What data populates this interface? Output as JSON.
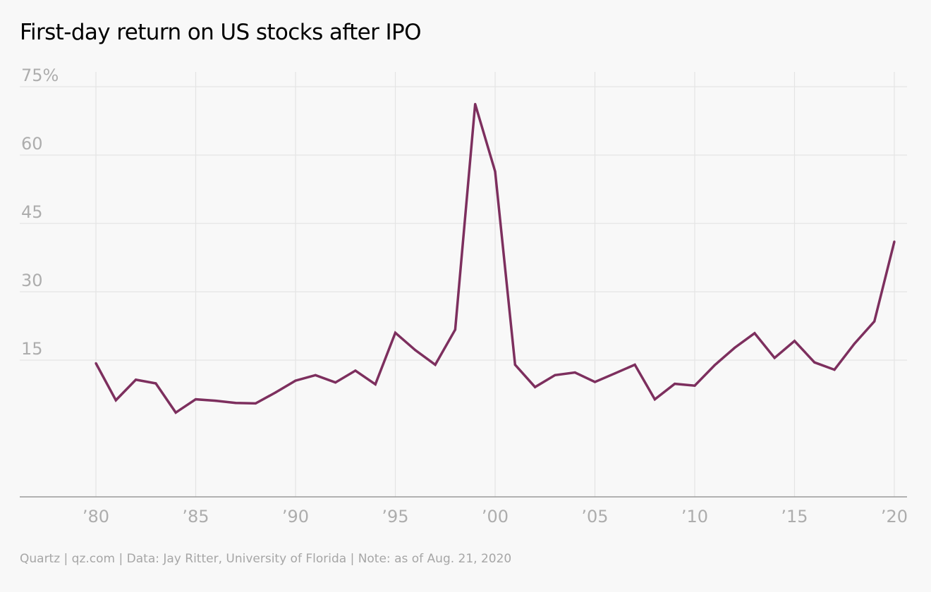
{
  "chart_data": {
    "type": "line",
    "title": "First-day return on US stocks after IPO",
    "xlabel": "",
    "ylabel": "",
    "xlim": [
      1980,
      2020
    ],
    "ylim": [
      -15,
      75
    ],
    "grid": true,
    "legend": "none",
    "y_ticks": [
      {
        "value": 75,
        "label": "75%"
      },
      {
        "value": 60,
        "label": "60"
      },
      {
        "value": 45,
        "label": "45"
      },
      {
        "value": 30,
        "label": "30"
      },
      {
        "value": 15,
        "label": "15"
      }
    ],
    "x_ticks": [
      {
        "value": 1980,
        "label": "’80"
      },
      {
        "value": 1985,
        "label": "’85"
      },
      {
        "value": 1990,
        "label": "’90"
      },
      {
        "value": 1995,
        "label": "’95"
      },
      {
        "value": 2000,
        "label": "’00"
      },
      {
        "value": 2005,
        "label": "’05"
      },
      {
        "value": 2010,
        "label": "’10"
      },
      {
        "value": 2015,
        "label": "’15"
      },
      {
        "value": 2020,
        "label": "’20"
      }
    ],
    "series": [
      {
        "color": "#7d2f5e",
        "x": [
          1980,
          1981,
          1982,
          1983,
          1984,
          1985,
          1986,
          1987,
          1988,
          1989,
          1990,
          1991,
          1992,
          1993,
          1994,
          1995,
          1996,
          1997,
          1998,
          1999,
          2000,
          2001,
          2002,
          2003,
          2004,
          2005,
          2006,
          2007,
          2008,
          2009,
          2010,
          2011,
          2012,
          2013,
          2014,
          2015,
          2016,
          2017,
          2018,
          2019,
          2020
        ],
        "values": [
          14.3,
          6.2,
          10.7,
          9.9,
          3.5,
          6.4,
          6.1,
          5.6,
          5.5,
          7.9,
          10.5,
          11.7,
          10.1,
          12.7,
          9.7,
          21.0,
          17.2,
          14.0,
          21.7,
          71.2,
          56.4,
          14.0,
          9.1,
          11.7,
          12.3,
          10.2,
          12.1,
          14.0,
          6.4,
          9.8,
          9.4,
          13.9,
          17.7,
          20.9,
          15.5,
          19.2,
          14.5,
          12.9,
          18.6,
          23.5,
          41.0
        ]
      }
    ]
  },
  "footer": "Quartz | qz.com | Data: Jay Ritter, University of Florida | Note: as of Aug. 21, 2020"
}
